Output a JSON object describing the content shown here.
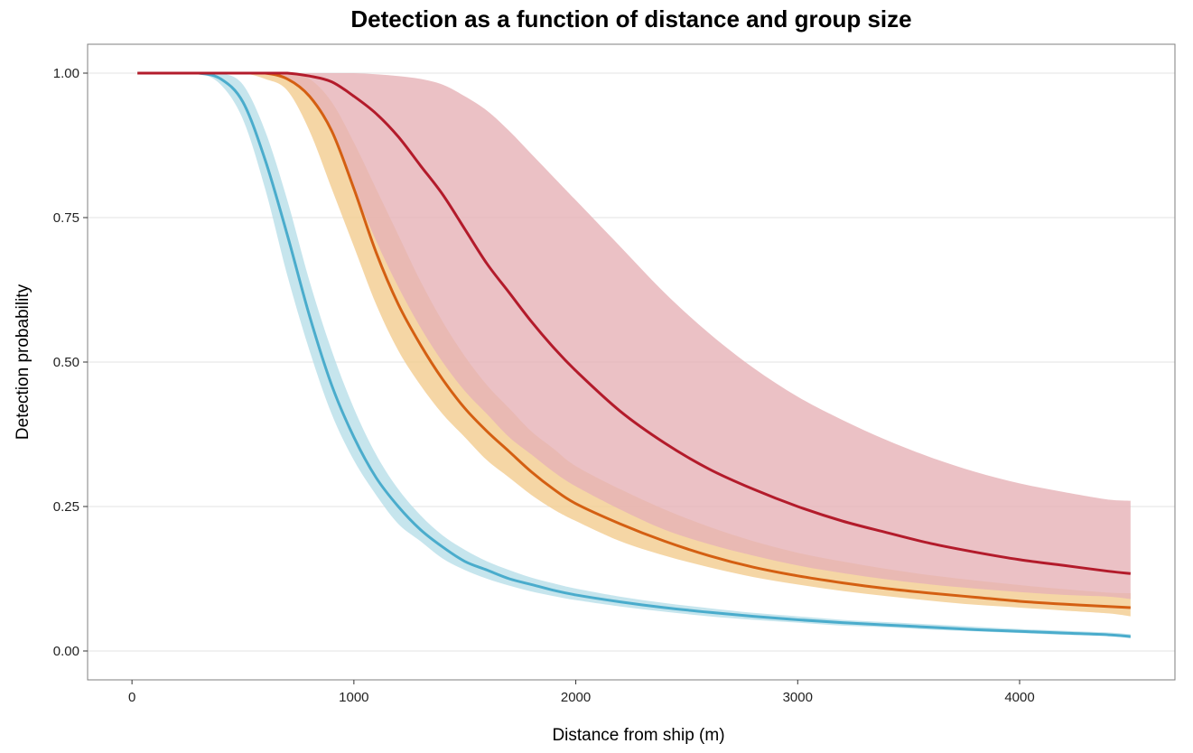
{
  "chart_data": {
    "type": "line",
    "title": "Detection as a function of distance and group size",
    "xlabel": "Distance from ship (m)",
    "ylabel": "Detection probability",
    "xlim": [
      -200,
      4700
    ],
    "ylim": [
      -0.05,
      1.05
    ],
    "x_ticks": [
      0,
      1000,
      2000,
      3000,
      4000
    ],
    "x_tick_labels": [
      "0",
      "1000",
      "2000",
      "3000",
      "4000"
    ],
    "y_ticks": [
      0.0,
      0.25,
      0.5,
      0.75,
      1.0
    ],
    "y_tick_labels": [
      "0.00",
      "0.25",
      "0.50",
      "0.75",
      "1.00"
    ],
    "grid": true,
    "legend": "none",
    "x": [
      25,
      100,
      200,
      300,
      400,
      500,
      600,
      700,
      800,
      900,
      1000,
      1100,
      1200,
      1300,
      1400,
      1500,
      1600,
      1700,
      1800,
      1900,
      2000,
      2200,
      2400,
      2600,
      2800,
      3000,
      3200,
      3400,
      3600,
      3800,
      4000,
      4200,
      4400,
      4500
    ],
    "series": [
      {
        "color": "#4aaccc",
        "band_color": "#b8dfe9",
        "values": [
          1.0,
          1.0,
          1.0,
          1.0,
          0.99,
          0.95,
          0.85,
          0.72,
          0.58,
          0.46,
          0.37,
          0.3,
          0.25,
          0.21,
          0.18,
          0.155,
          0.14,
          0.125,
          0.115,
          0.105,
          0.097,
          0.085,
          0.075,
          0.067,
          0.06,
          0.054,
          0.049,
          0.045,
          0.041,
          0.037,
          0.034,
          0.031,
          0.028,
          0.025
        ],
        "lower": [
          1.0,
          1.0,
          1.0,
          1.0,
          0.98,
          0.92,
          0.8,
          0.65,
          0.52,
          0.41,
          0.33,
          0.27,
          0.22,
          0.19,
          0.16,
          0.14,
          0.125,
          0.113,
          0.103,
          0.095,
          0.088,
          0.077,
          0.068,
          0.06,
          0.054,
          0.049,
          0.044,
          0.041,
          0.037,
          0.034,
          0.031,
          0.028,
          0.026,
          0.022
        ],
        "upper": [
          1.0,
          1.0,
          1.0,
          1.0,
          1.0,
          0.98,
          0.9,
          0.78,
          0.64,
          0.52,
          0.42,
          0.34,
          0.28,
          0.235,
          0.2,
          0.175,
          0.155,
          0.14,
          0.127,
          0.117,
          0.108,
          0.094,
          0.083,
          0.074,
          0.066,
          0.06,
          0.054,
          0.05,
          0.046,
          0.042,
          0.038,
          0.035,
          0.032,
          0.029
        ]
      },
      {
        "color": "#d45f12",
        "band_color": "#f2cc8f",
        "values": [
          1.0,
          1.0,
          1.0,
          1.0,
          1.0,
          1.0,
          1.0,
          0.99,
          0.96,
          0.9,
          0.8,
          0.69,
          0.6,
          0.53,
          0.47,
          0.42,
          0.38,
          0.345,
          0.31,
          0.28,
          0.255,
          0.22,
          0.19,
          0.165,
          0.145,
          0.13,
          0.118,
          0.108,
          0.1,
          0.093,
          0.086,
          0.081,
          0.077,
          0.075
        ],
        "lower": [
          1.0,
          1.0,
          1.0,
          1.0,
          1.0,
          1.0,
          0.99,
          0.97,
          0.9,
          0.8,
          0.7,
          0.6,
          0.52,
          0.46,
          0.41,
          0.37,
          0.33,
          0.3,
          0.27,
          0.245,
          0.225,
          0.19,
          0.165,
          0.145,
          0.128,
          0.115,
          0.104,
          0.095,
          0.087,
          0.08,
          0.075,
          0.07,
          0.065,
          0.06
        ],
        "upper": [
          1.0,
          1.0,
          1.0,
          1.0,
          1.0,
          1.0,
          1.0,
          1.0,
          0.99,
          0.95,
          0.88,
          0.8,
          0.72,
          0.64,
          0.57,
          0.51,
          0.46,
          0.42,
          0.38,
          0.35,
          0.32,
          0.28,
          0.245,
          0.215,
          0.19,
          0.17,
          0.155,
          0.142,
          0.131,
          0.122,
          0.114,
          0.107,
          0.101,
          0.1
        ]
      },
      {
        "color": "#b31b2b",
        "band_color": "#e6b2b6",
        "values": [
          1.0,
          1.0,
          1.0,
          1.0,
          1.0,
          1.0,
          1.0,
          1.0,
          0.995,
          0.985,
          0.96,
          0.93,
          0.89,
          0.84,
          0.79,
          0.73,
          0.67,
          0.62,
          0.57,
          0.525,
          0.485,
          0.415,
          0.36,
          0.315,
          0.28,
          0.25,
          0.225,
          0.205,
          0.186,
          0.171,
          0.158,
          0.148,
          0.138,
          0.134
        ],
        "lower": [
          1.0,
          1.0,
          1.0,
          1.0,
          1.0,
          1.0,
          1.0,
          0.99,
          0.96,
          0.9,
          0.8,
          0.71,
          0.63,
          0.56,
          0.5,
          0.45,
          0.41,
          0.37,
          0.34,
          0.31,
          0.285,
          0.245,
          0.21,
          0.185,
          0.165,
          0.148,
          0.135,
          0.124,
          0.115,
          0.108,
          0.102,
          0.097,
          0.094,
          0.09
        ],
        "upper": [
          1.0,
          1.0,
          1.0,
          1.0,
          1.0,
          1.0,
          1.0,
          1.0,
          1.0,
          1.0,
          1.0,
          0.998,
          0.995,
          0.99,
          0.98,
          0.96,
          0.935,
          0.9,
          0.86,
          0.82,
          0.78,
          0.7,
          0.62,
          0.55,
          0.49,
          0.44,
          0.4,
          0.365,
          0.335,
          0.31,
          0.29,
          0.275,
          0.262,
          0.26
        ]
      }
    ]
  }
}
